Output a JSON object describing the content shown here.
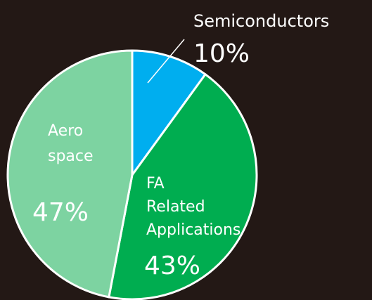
{
  "chart_data": {
    "type": "pie",
    "categories": [
      "Semiconductors",
      "FA Related Applications",
      "Aero space"
    ],
    "values": [
      10,
      43,
      47
    ],
    "value_labels": [
      "10%",
      "43%",
      "47%"
    ],
    "colors": [
      "#00aeef",
      "#00ad50",
      "#7dd3a1"
    ]
  }
}
